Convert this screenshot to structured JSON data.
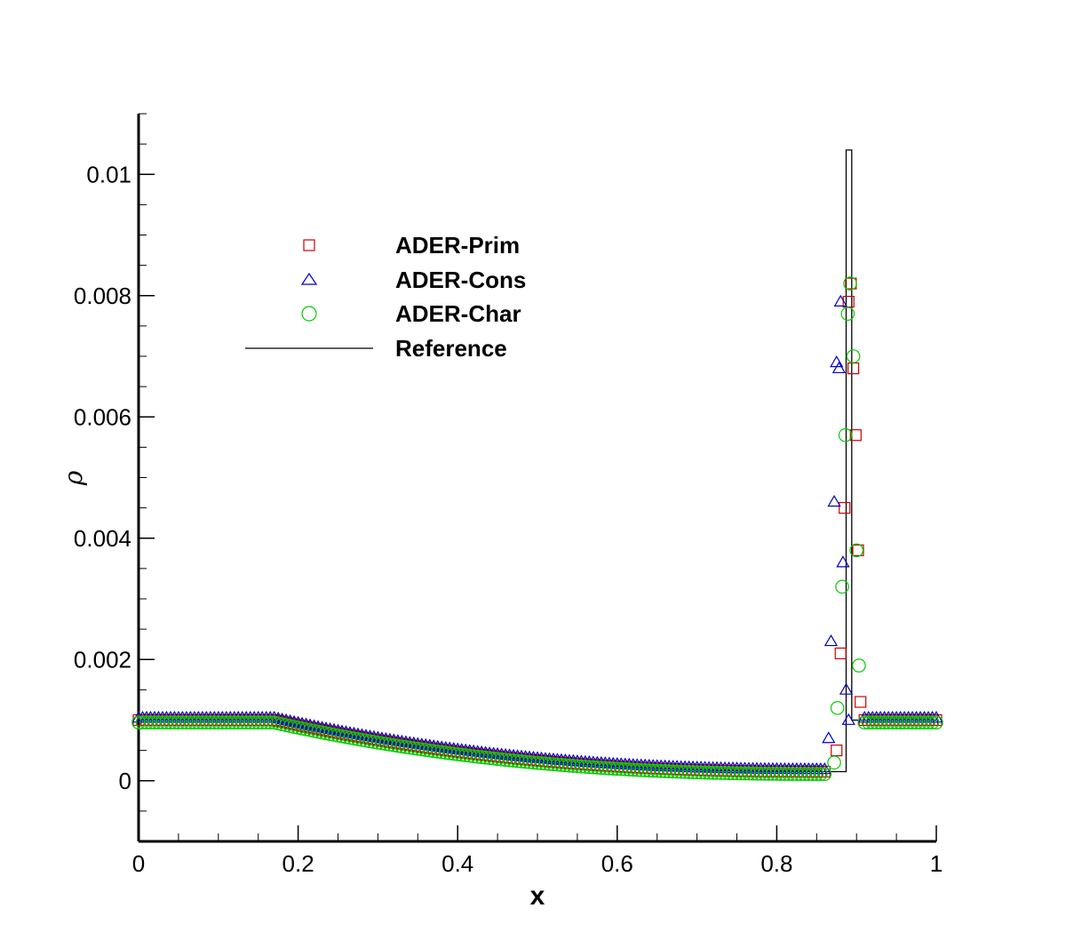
{
  "chart_data": {
    "type": "scatter",
    "title": "",
    "xlabel": "x",
    "ylabel": "ρ",
    "xlim": [
      0,
      1
    ],
    "ylim": [
      -0.001,
      0.011
    ],
    "x_ticks": [
      "0",
      "0.2",
      "0.4",
      "0.6",
      "0.8",
      "1"
    ],
    "y_ticks": [
      "0",
      "0.002",
      "0.004",
      "0.006",
      "0.008",
      "0.01"
    ],
    "grid": false,
    "legend_position": "upper-left inside",
    "series": [
      {
        "name": "ADER-Prim",
        "marker": "square",
        "color": "#cc0000",
        "peak_points": [
          {
            "x": 0.875,
            "y": 0.0005
          },
          {
            "x": 0.88,
            "y": 0.0021
          },
          {
            "x": 0.885,
            "y": 0.0045
          },
          {
            "x": 0.89,
            "y": 0.0079
          },
          {
            "x": 0.893,
            "y": 0.0082
          },
          {
            "x": 0.896,
            "y": 0.0068
          },
          {
            "x": 0.899,
            "y": 0.0057
          },
          {
            "x": 0.902,
            "y": 0.0038
          },
          {
            "x": 0.905,
            "y": 0.0013
          }
        ]
      },
      {
        "name": "ADER-Cons",
        "marker": "triangle",
        "color": "#0000cc",
        "peak_points": [
          {
            "x": 0.865,
            "y": 0.0007
          },
          {
            "x": 0.868,
            "y": 0.0023
          },
          {
            "x": 0.872,
            "y": 0.0046
          },
          {
            "x": 0.875,
            "y": 0.0069
          },
          {
            "x": 0.878,
            "y": 0.0068
          },
          {
            "x": 0.88,
            "y": 0.0079
          },
          {
            "x": 0.883,
            "y": 0.0036
          },
          {
            "x": 0.887,
            "y": 0.0015
          },
          {
            "x": 0.89,
            "y": 0.001
          }
        ]
      },
      {
        "name": "ADER-Char",
        "marker": "circle",
        "color": "#00cc00",
        "peak_points": [
          {
            "x": 0.872,
            "y": 0.0003
          },
          {
            "x": 0.876,
            "y": 0.0012
          },
          {
            "x": 0.882,
            "y": 0.0032
          },
          {
            "x": 0.886,
            "y": 0.0057
          },
          {
            "x": 0.889,
            "y": 0.0077
          },
          {
            "x": 0.892,
            "y": 0.0082
          },
          {
            "x": 0.896,
            "y": 0.007
          },
          {
            "x": 0.9,
            "y": 0.0038
          },
          {
            "x": 0.903,
            "y": 0.0019
          }
        ]
      },
      {
        "name": "Reference",
        "marker": "line",
        "color": "#000000"
      }
    ],
    "profile": {
      "left_state": {
        "x_end": 0.17,
        "rho": 0.001
      },
      "rarefaction": {
        "x_start": 0.17,
        "x_end": 0.87,
        "rho_end": 0.00015
      },
      "contact_x": 0.887,
      "shock_x": 0.894,
      "reference_peak": 0.0104,
      "right_state": {
        "x_start": 0.894,
        "rho": 0.001
      }
    }
  }
}
